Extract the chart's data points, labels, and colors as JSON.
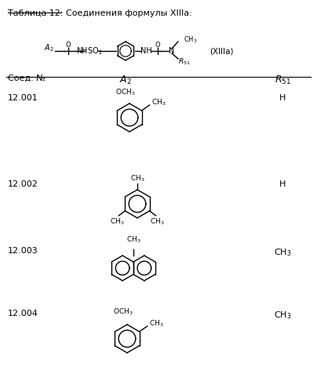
{
  "title": "Таблица 12: Соединения формулы XIIIa:",
  "bg_color": "#ffffff",
  "text_color": "#000000",
  "fig_width": 4.04,
  "fig_height": 5.0,
  "dpi": 100,
  "compounds": [
    {
      "id": "12.001",
      "r51": "H"
    },
    {
      "id": "12.002",
      "r51": "H"
    },
    {
      "id": "12.003",
      "r51": "CH₃"
    },
    {
      "id": "12.004",
      "r51": "CH₃"
    }
  ],
  "col_headers": [
    "Соед. №",
    "A₂",
    "R₅₁"
  ],
  "formula_label": "(XIIIa)"
}
